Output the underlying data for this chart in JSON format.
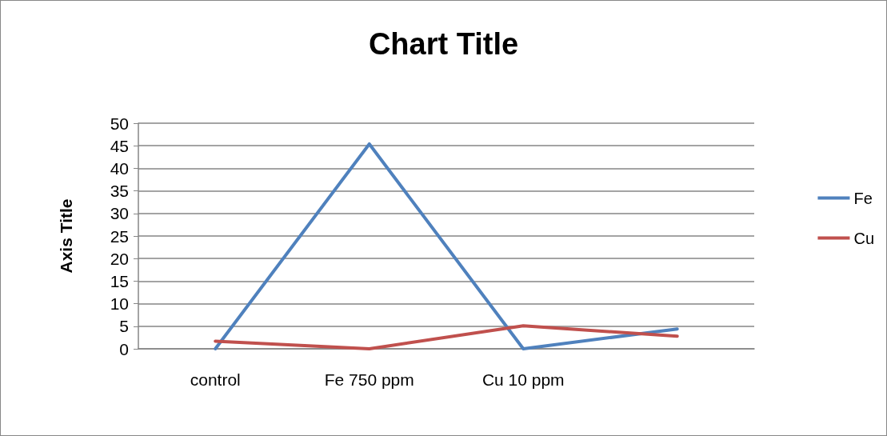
{
  "chart_data": {
    "type": "line",
    "title": "Chart Title",
    "ylabel": "Axis Title",
    "categories": [
      "control",
      "Fe 750 ppm",
      "Cu 10 ppm",
      null
    ],
    "series": [
      {
        "name": "Fe",
        "color": "#4f81bd",
        "values": [
          0,
          45.4,
          0,
          4.4
        ]
      },
      {
        "name": "Cu",
        "color": "#c0504d",
        "values": [
          1.7,
          0,
          5.1,
          2.8
        ]
      }
    ],
    "ylim": [
      0,
      50
    ],
    "yticks": [
      0,
      5,
      10,
      15,
      20,
      25,
      30,
      35,
      40,
      45,
      50
    ],
    "grid": "y",
    "legend": "right",
    "marker": "none",
    "line_style": "solid"
  }
}
